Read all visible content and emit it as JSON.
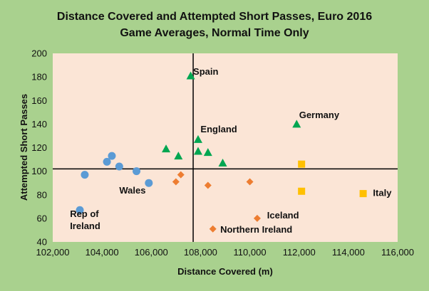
{
  "chart_data": {
    "type": "scatter",
    "title": "Distance Covered and  Attempted Short Passes, Euro 2016",
    "subtitle": "Game Averages, Normal Time Only",
    "xlabel": "Distance Covered (m)",
    "ylabel": "Attempted Short Passes",
    "xlim": [
      102000,
      116000
    ],
    "ylim": [
      40,
      200
    ],
    "x_ticks": [
      102000,
      104000,
      106000,
      108000,
      110000,
      112000,
      114000,
      116000
    ],
    "x_tick_labels": [
      "102,000",
      "104,000",
      "106,000",
      "108,000",
      "110,000",
      "112,000",
      "114,000",
      "116,000"
    ],
    "y_ticks": [
      40,
      60,
      80,
      100,
      120,
      140,
      160,
      180,
      200
    ],
    "y_tick_labels": [
      "40",
      "60",
      "80",
      "100",
      "120",
      "140",
      "160",
      "180",
      "200"
    ],
    "reference_lines": {
      "x": 107700,
      "y": 102
    },
    "series": [
      {
        "name": "blue-circle-group",
        "marker": "circle",
        "color": "#5b9bd5",
        "points": [
          {
            "x": 103100,
            "y": 67
          },
          {
            "x": 103300,
            "y": 97
          },
          {
            "x": 104200,
            "y": 108
          },
          {
            "x": 104400,
            "y": 113
          },
          {
            "x": 104700,
            "y": 104
          },
          {
            "x": 105400,
            "y": 100
          },
          {
            "x": 105900,
            "y": 90
          }
        ]
      },
      {
        "name": "green-triangle-group",
        "marker": "triangle",
        "color": "#00a651",
        "points": [
          {
            "x": 106600,
            "y": 119
          },
          {
            "x": 107100,
            "y": 113
          },
          {
            "x": 107600,
            "y": 181
          },
          {
            "x": 107900,
            "y": 127
          },
          {
            "x": 107900,
            "y": 117
          },
          {
            "x": 108300,
            "y": 116
          },
          {
            "x": 108900,
            "y": 107
          },
          {
            "x": 111900,
            "y": 140
          }
        ]
      },
      {
        "name": "orange-diamond-group",
        "marker": "diamond",
        "color": "#ed7d31",
        "points": [
          {
            "x": 107000,
            "y": 91
          },
          {
            "x": 107200,
            "y": 97
          },
          {
            "x": 108300,
            "y": 88
          },
          {
            "x": 108500,
            "y": 51
          },
          {
            "x": 110000,
            "y": 91
          },
          {
            "x": 110300,
            "y": 60
          }
        ]
      },
      {
        "name": "yellow-square-group",
        "marker": "square",
        "color": "#ffc000",
        "points": [
          {
            "x": 112100,
            "y": 106
          },
          {
            "x": 112100,
            "y": 83
          },
          {
            "x": 114600,
            "y": 81
          }
        ]
      }
    ],
    "annotations": [
      {
        "lines": [
          "Spain"
        ],
        "x": 107700,
        "y": 182
      },
      {
        "lines": [
          "Germany"
        ],
        "x": 112000,
        "y": 145
      },
      {
        "lines": [
          "England"
        ],
        "x": 108000,
        "y": 133
      },
      {
        "lines": [
          "Wales"
        ],
        "x": 104700,
        "y": 81
      },
      {
        "lines": [
          "Rep of",
          "Ireland"
        ],
        "x": 102700,
        "y": 61
      },
      {
        "lines": [
          "Iceland"
        ],
        "x": 110700,
        "y": 60
      },
      {
        "lines": [
          "Italy"
        ],
        "x": 115000,
        "y": 79
      },
      {
        "lines": [
          "Northern Ireland"
        ],
        "x": 108800,
        "y": 48
      }
    ],
    "grid": false,
    "legend": "none",
    "background": "#a9d18e",
    "plot_background": "#fbe5d6"
  }
}
